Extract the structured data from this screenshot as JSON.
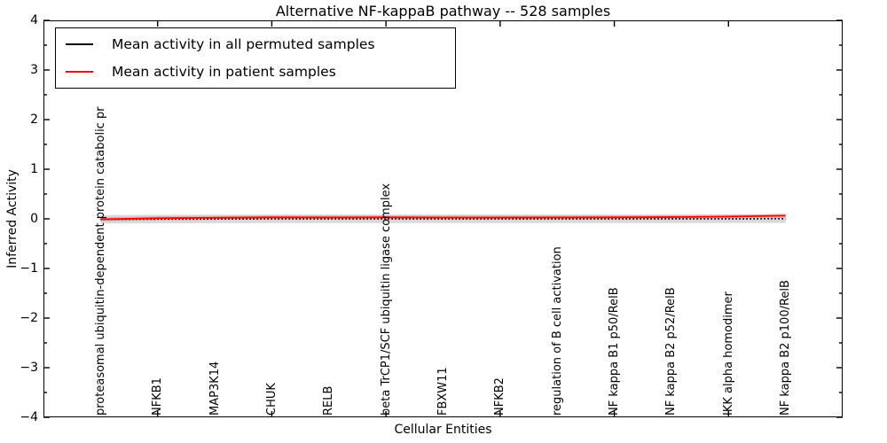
{
  "figure": {
    "background": "#ffffff",
    "frame_color": "#000000"
  },
  "chart_data": {
    "type": "line",
    "title": "Alternative NF-kappaB pathway -- 528 samples",
    "xlabel": "Cellular Entities",
    "ylabel": "Inferred Activity",
    "ylim": [
      -4,
      4
    ],
    "xlim": [
      0,
      14
    ],
    "grid": false,
    "legend_position": "upper left",
    "ytick_values": [
      4,
      3,
      2,
      1,
      0,
      -1,
      -2,
      -3,
      -4
    ],
    "ytick_labels": [
      "4",
      "3",
      "2",
      "1",
      "0",
      "−1",
      "−2",
      "−3",
      "−4"
    ],
    "ytick_minor_values": [
      3.5,
      2.5,
      1.5,
      0.5,
      -0.5,
      -1.5,
      -2.5,
      -3.5
    ],
    "xtick_values": [
      2,
      4,
      6,
      8,
      10,
      12
    ],
    "categories": [
      "proteasomal ubiquitin-dependent protein catabolic pr",
      "NFKB1",
      "MAP3K14",
      "CHUK",
      "RELB",
      "beta TrCP1/SCF ubiquitin ligase complex",
      "FBXW11",
      "NFKB2",
      "regulation of B cell activation",
      "NF kappa B1 p50/RelB",
      "NF kappa B2 p52/RelB",
      "IKK alpha homodimer",
      "NF kappa B2 p100/RelB"
    ],
    "series": [
      {
        "name": "Mean activity in all permuted samples",
        "color": "#000000",
        "style": "dotted",
        "values": [
          -0.01,
          -0.005,
          -0.003,
          0,
          0,
          0,
          0,
          0,
          0,
          0,
          0,
          0,
          0.003
        ],
        "band_halfwidth": 0.085,
        "band_color": "rgba(0,0,0,0.15)"
      },
      {
        "name": "Mean activity in patient samples",
        "color": "#ff0000",
        "style": "solid",
        "values": [
          -0.01,
          0.012,
          0.022,
          0.03,
          0.028,
          0.03,
          0.027,
          0.026,
          0.028,
          0.03,
          0.035,
          0.045,
          0.065
        ],
        "band_halfwidth": 0.04,
        "band_color": "rgba(255,0,0,0.18)"
      }
    ]
  }
}
